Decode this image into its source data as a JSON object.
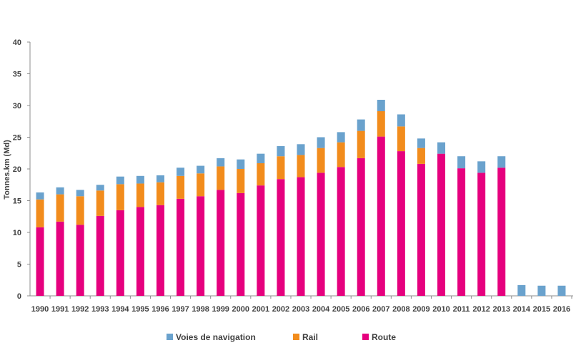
{
  "chart_data": {
    "type": "bar",
    "stacked": true,
    "title": "",
    "xlabel": "",
    "ylabel": "Tonnes.km (Md)",
    "ylim": [
      0,
      40
    ],
    "yticks": [
      0,
      5,
      10,
      15,
      20,
      25,
      30,
      35,
      40
    ],
    "grid": false,
    "legend_position": "bottom",
    "categories": [
      "1990",
      "1991",
      "1992",
      "1993",
      "1994",
      "1995",
      "1996",
      "1997",
      "1998",
      "1999",
      "2000",
      "2001",
      "2002",
      "2003",
      "2004",
      "2005",
      "2006",
      "2007",
      "2008",
      "2009",
      "2010",
      "2011",
      "2012",
      "2013",
      "2014",
      "2015",
      "2016"
    ],
    "series": [
      {
        "name": "Route",
        "color": "#e6007e",
        "values": [
          10.8,
          11.7,
          11.2,
          12.6,
          13.5,
          14.0,
          14.3,
          15.3,
          15.7,
          16.7,
          16.2,
          17.4,
          18.4,
          18.7,
          19.4,
          20.3,
          21.7,
          25.1,
          22.8,
          20.8,
          22.4,
          20.1,
          19.4,
          20.2,
          0,
          0,
          0
        ]
      },
      {
        "name": "Rail",
        "color": "#f28c1c",
        "values": [
          4.4,
          4.3,
          4.5,
          4.0,
          4.1,
          3.7,
          3.6,
          3.6,
          3.6,
          3.7,
          3.8,
          3.5,
          3.6,
          3.5,
          3.9,
          3.9,
          4.3,
          4.0,
          3.9,
          2.5,
          0,
          0,
          0,
          0,
          0,
          0,
          0
        ]
      },
      {
        "name": "Voies de navigation",
        "color": "#6aa2cd",
        "values": [
          1.1,
          1.1,
          1.0,
          0.9,
          1.2,
          1.2,
          1.1,
          1.3,
          1.2,
          1.3,
          1.5,
          1.5,
          1.6,
          1.7,
          1.7,
          1.6,
          1.8,
          1.8,
          1.9,
          1.5,
          1.8,
          1.9,
          1.8,
          1.8,
          1.7,
          1.6,
          1.6
        ]
      }
    ],
    "legend_order": [
      "Voies de navigation",
      "Rail",
      "Route"
    ]
  }
}
